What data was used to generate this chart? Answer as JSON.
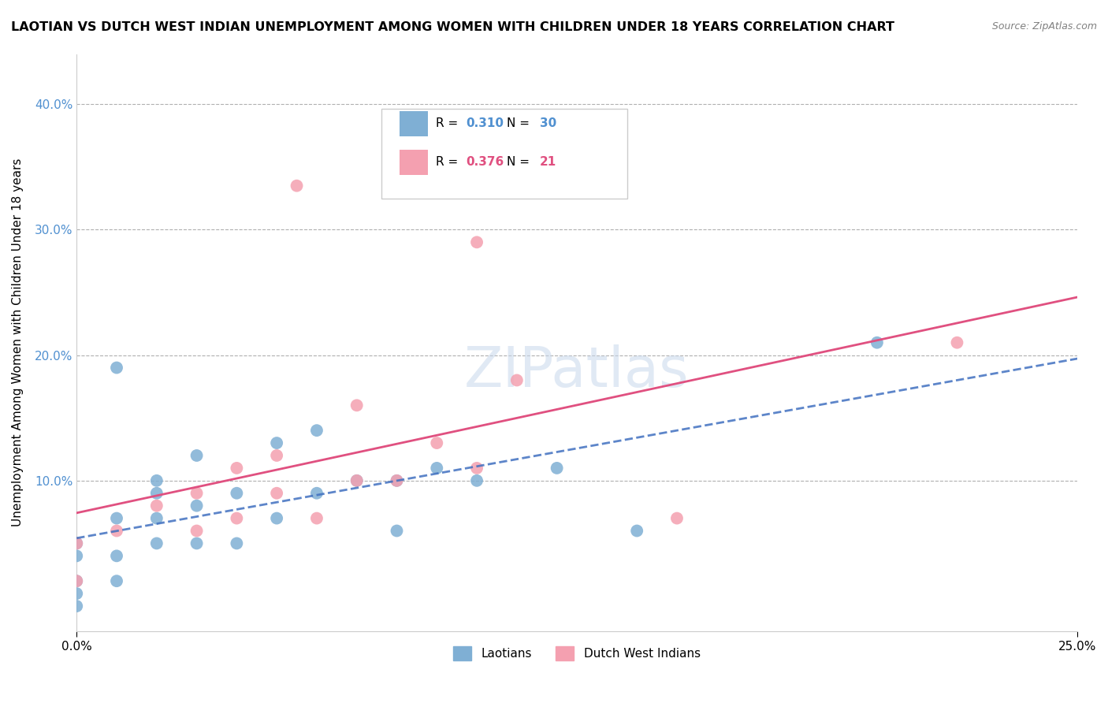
{
  "title": "LAOTIAN VS DUTCH WEST INDIAN UNEMPLOYMENT AMONG WOMEN WITH CHILDREN UNDER 18 YEARS CORRELATION CHART",
  "source": "Source: ZipAtlas.com",
  "ylabel": "Unemployment Among Women with Children Under 18 years",
  "xlim": [
    0.0,
    0.25
  ],
  "ylim": [
    -0.02,
    0.44
  ],
  "legend_laotian_R": "0.310",
  "legend_laotian_N": "30",
  "legend_dutch_R": "0.376",
  "legend_dutch_N": "21",
  "laotian_color": "#7fafd4",
  "dutch_color": "#f4a0b0",
  "laotian_line_color": "#4070c0",
  "dutch_line_color": "#e05080",
  "watermark": "ZIPatlas",
  "laotian_x": [
    0.0,
    0.0,
    0.0,
    0.0,
    0.0,
    0.01,
    0.01,
    0.01,
    0.01,
    0.02,
    0.02,
    0.02,
    0.02,
    0.03,
    0.03,
    0.03,
    0.04,
    0.04,
    0.05,
    0.05,
    0.06,
    0.06,
    0.07,
    0.08,
    0.08,
    0.09,
    0.1,
    0.12,
    0.14,
    0.2
  ],
  "laotian_y": [
    0.0,
    0.01,
    0.02,
    0.04,
    0.05,
    0.02,
    0.04,
    0.07,
    0.19,
    0.05,
    0.07,
    0.09,
    0.1,
    0.05,
    0.08,
    0.12,
    0.05,
    0.09,
    0.07,
    0.13,
    0.09,
    0.14,
    0.1,
    0.1,
    0.06,
    0.11,
    0.1,
    0.11,
    0.06,
    0.21
  ],
  "dutch_x": [
    0.0,
    0.0,
    0.01,
    0.02,
    0.03,
    0.03,
    0.04,
    0.04,
    0.05,
    0.05,
    0.06,
    0.055,
    0.07,
    0.07,
    0.08,
    0.09,
    0.1,
    0.1,
    0.11,
    0.15,
    0.22
  ],
  "dutch_y": [
    0.02,
    0.05,
    0.06,
    0.08,
    0.06,
    0.09,
    0.07,
    0.11,
    0.09,
    0.12,
    0.07,
    0.335,
    0.1,
    0.16,
    0.1,
    0.13,
    0.11,
    0.29,
    0.18,
    0.07,
    0.21
  ]
}
